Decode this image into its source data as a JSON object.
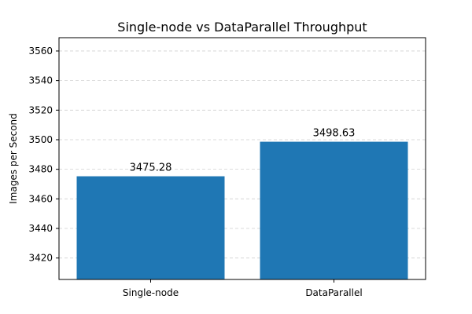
{
  "chart_data": {
    "type": "bar",
    "title": "Single-node vs DataParallel Throughput",
    "xlabel": "",
    "ylabel": "Images per Second",
    "categories": [
      "Single-node",
      "DataParallel"
    ],
    "values": [
      3475.28,
      3498.63
    ],
    "data_labels": [
      "3475.28",
      "3498.63"
    ],
    "ylim": [
      3405.5,
      3569
    ],
    "yticks": [
      3420,
      3440,
      3460,
      3480,
      3500,
      3520,
      3540,
      3560
    ],
    "grid": "y",
    "bar_color": "#1f77b4"
  }
}
